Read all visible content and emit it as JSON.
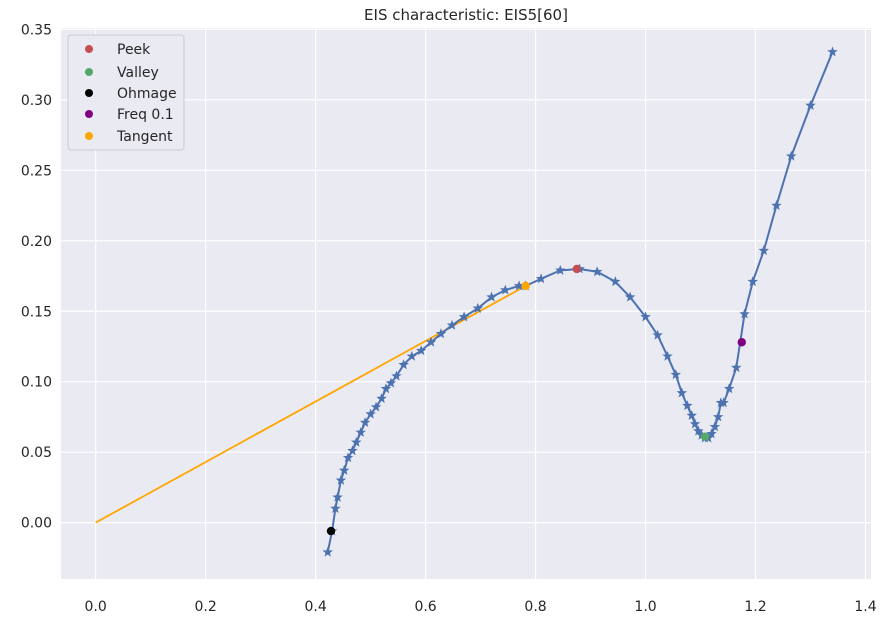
{
  "chart_data": {
    "type": "scatter",
    "title": "EIS characteristic: EIS5[60]",
    "xlabel": "",
    "ylabel": "",
    "xlim": [
      -0.063,
      1.41
    ],
    "ylim": [
      -0.04,
      0.351
    ],
    "xticks": [
      0.0,
      0.2,
      0.4,
      0.6,
      0.8,
      1.0,
      1.2,
      1.4
    ],
    "xtick_labels": [
      "0.0",
      "0.2",
      "0.4",
      "0.6",
      "0.8",
      "1.0",
      "1.2",
      "1.4"
    ],
    "yticks": [
      0.0,
      0.05,
      0.1,
      0.15,
      0.2,
      0.25,
      0.3,
      0.35
    ],
    "ytick_labels": [
      "0.00",
      "0.05",
      "0.10",
      "0.15",
      "0.20",
      "0.25",
      "0.30",
      "0.35"
    ],
    "grid": true,
    "legend_position": "top-left",
    "series": [
      {
        "marker": "star",
        "color": "#4c72b0",
        "x": [
          0.422,
          0.43,
          0.436,
          0.44,
          0.446,
          0.452,
          0.459,
          0.467,
          0.474,
          0.482,
          0.49,
          0.5,
          0.51,
          0.52,
          0.528,
          0.537,
          0.547,
          0.56,
          0.575,
          0.592,
          0.61,
          0.628,
          0.648,
          0.67,
          0.695,
          0.72,
          0.745,
          0.77,
          0.782,
          0.81,
          0.845,
          0.88,
          0.912,
          0.945,
          0.972,
          1.0,
          1.022,
          1.04,
          1.055,
          1.066,
          1.076,
          1.084,
          1.09,
          1.096,
          1.102,
          1.108,
          1.114,
          1.12,
          1.126,
          1.132,
          1.137,
          1.142,
          1.152,
          1.165,
          1.18,
          1.195,
          1.215,
          1.238,
          1.265,
          1.3,
          1.34
        ],
        "y": [
          -0.021,
          -0.006,
          0.01,
          0.018,
          0.03,
          0.037,
          0.046,
          0.051,
          0.057,
          0.064,
          0.071,
          0.077,
          0.082,
          0.088,
          0.095,
          0.099,
          0.104,
          0.112,
          0.118,
          0.122,
          0.128,
          0.134,
          0.14,
          0.146,
          0.152,
          0.16,
          0.165,
          0.168,
          0.168,
          0.173,
          0.179,
          0.18,
          0.178,
          0.171,
          0.16,
          0.146,
          0.133,
          0.118,
          0.105,
          0.092,
          0.083,
          0.076,
          0.07,
          0.065,
          0.062,
          0.06,
          0.06,
          0.063,
          0.068,
          0.075,
          0.085,
          0.085,
          0.095,
          0.11,
          0.148,
          0.171,
          0.193,
          0.225,
          0.26,
          0.296,
          0.334
        ]
      },
      {
        "name": "Peek",
        "color": "#c44e52",
        "marker": "circle",
        "x": [
          0.875
        ],
        "y": [
          0.18
        ]
      },
      {
        "name": "Valley",
        "color": "#55a868",
        "marker": "circle",
        "x": [
          1.108
        ],
        "y": [
          0.061
        ]
      },
      {
        "name": "Ohmage",
        "color": "#000000",
        "marker": "circle",
        "x": [
          0.428
        ],
        "y": [
          -0.006
        ]
      },
      {
        "name": "Freq 0.1",
        "color": "#800080",
        "marker": "circle",
        "x": [
          1.175
        ],
        "y": [
          0.128
        ]
      },
      {
        "name": "Tangent",
        "color": "#ffa500",
        "marker": "circle",
        "x": [
          0.782
        ],
        "y": [
          0.168
        ],
        "line": {
          "x": [
            0.0,
            0.782
          ],
          "y": [
            0.0,
            0.168
          ]
        }
      }
    ]
  }
}
